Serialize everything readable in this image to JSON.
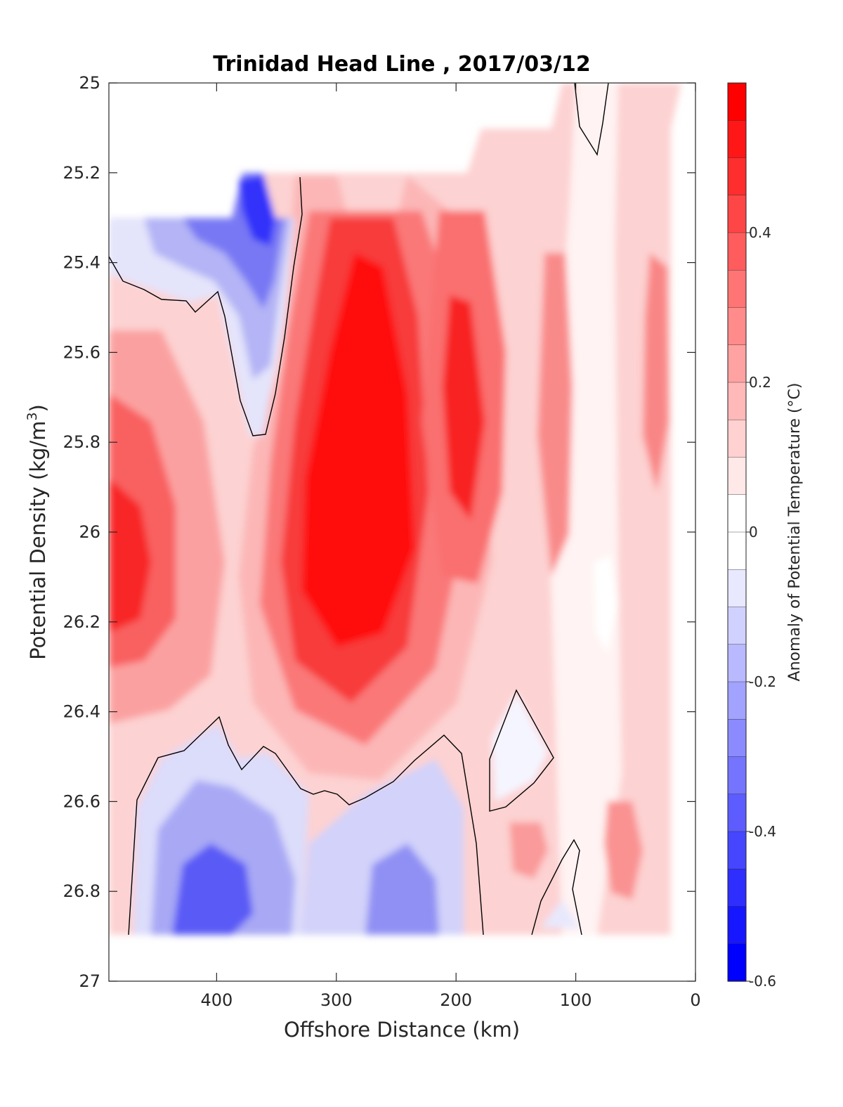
{
  "chart_data": {
    "type": "heatmap",
    "subtype": "filled-contour",
    "title": "Trinidad Head Line , 2017/03/12",
    "xlabel": "Offshore Distance (km)",
    "ylabel_main": "Potential Density (kg/m",
    "ylabel_sup": "3",
    "ylabel_end": ")",
    "xlim": [
      490,
      0
    ],
    "ylim": [
      25,
      27
    ],
    "x_direction": "reversed",
    "y_direction": "reversed",
    "x_ticks": [
      400,
      300,
      200,
      100,
      0
    ],
    "y_ticks": [
      "25",
      "25.2",
      "25.4",
      "25.6",
      "25.8",
      "26",
      "26.2",
      "26.4",
      "26.6",
      "26.8",
      "27"
    ],
    "colorbar": {
      "label": "Anomaly of Potential Temperature (°C)",
      "range": [
        -0.6,
        0.6
      ],
      "ticks": [
        "0.4",
        "0.2",
        "0",
        "-0.2",
        "-0.4",
        "-0.6"
      ],
      "levels": 24,
      "colors": {
        "max": "#ff0000",
        "zero": "#ffffff",
        "min": "#0000ff"
      }
    },
    "contour_line_color": "#000000",
    "regions": [
      {
        "feature": "warm core",
        "x": 280,
        "y": 26.0,
        "anomaly": 0.6
      },
      {
        "feature": "warm lens",
        "x": 200,
        "y": 25.7,
        "anomaly": 0.5
      },
      {
        "feature": "warm lens",
        "x": 485,
        "y": 26.1,
        "anomaly": 0.5
      },
      {
        "feature": "warm lens",
        "x": 120,
        "y": 25.75,
        "anomaly": 0.35
      },
      {
        "feature": "warm lens",
        "x": 30,
        "y": 25.55,
        "anomaly": 0.35
      },
      {
        "feature": "cold lens",
        "x": 365,
        "y": 25.3,
        "anomaly": -0.6
      },
      {
        "feature": "cold lens",
        "x": 410,
        "y": 26.8,
        "anomaly": -0.45
      },
      {
        "feature": "cold lens",
        "x": 250,
        "y": 26.8,
        "anomaly": -0.35
      },
      {
        "feature": "cold lens",
        "x": 145,
        "y": 26.5,
        "anomaly": -0.1
      }
    ]
  }
}
